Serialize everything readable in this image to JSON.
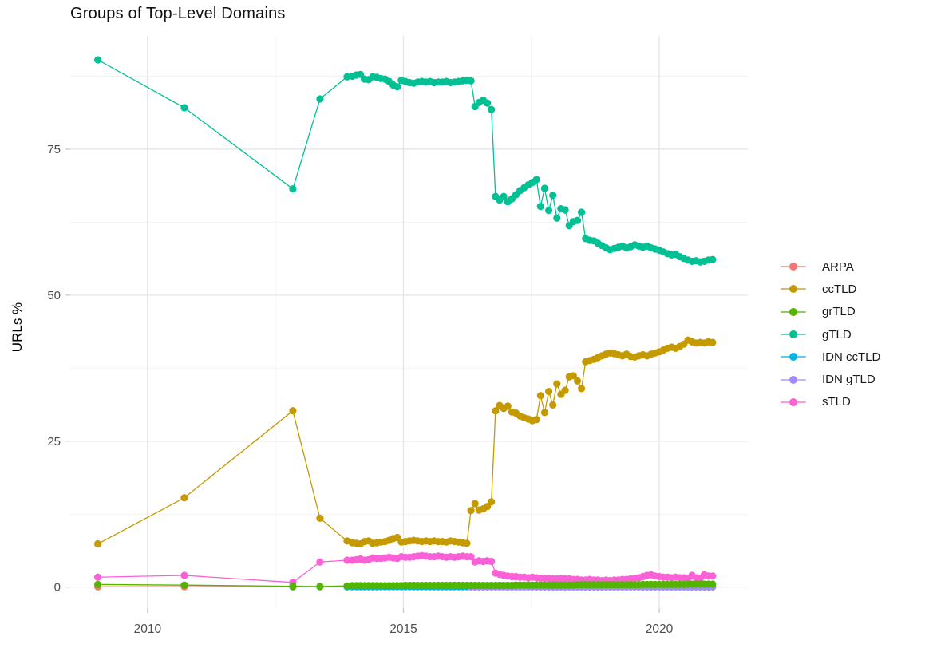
{
  "chart_data": {
    "type": "line",
    "title": "Groups of Top-Level Domains",
    "xlabel": "",
    "ylabel": "URLs %",
    "grid": true,
    "legend_position": "right",
    "xlim": [
      2008.49,
      2021.73
    ],
    "ylim": [
      -3.6,
      94.4
    ],
    "x_ticks": [
      2010,
      2015,
      2020
    ],
    "x_tick_labels": [
      "2010",
      "2015",
      "2020"
    ],
    "y_ticks": [
      0,
      25,
      50,
      75
    ],
    "y_tick_labels": [
      "0",
      "25",
      "50",
      "75"
    ],
    "x_minor": [
      2012.5,
      2017.5
    ],
    "y_minor": [
      12.5,
      37.5,
      62.5,
      87.5
    ],
    "colors": {
      "major_grid": "#e5e5e5",
      "minor_grid": "#f2f2f2",
      "tick_mark": "#c6c6c6",
      "tick_label": "#4d4d4d",
      "background": "#ffffff"
    },
    "draw_order": [
      "ARPA",
      "ccTLD",
      "gTLD",
      "IDN ccTLD",
      "IDN gTLD",
      "sTLD",
      "grTLD"
    ],
    "x": [
      2014.0,
      2014.08,
      2014.16,
      2014.24,
      2014.32,
      2014.4,
      2014.48,
      2014.56,
      2014.64,
      2014.72,
      2014.8,
      2014.88,
      2014.96,
      2015.04,
      2015.12,
      2015.2,
      2015.28,
      2015.36,
      2015.44,
      2015.52,
      2015.6,
      2015.68,
      2015.76,
      2015.84,
      2015.92,
      2016.0,
      2016.08,
      2016.16,
      2016.24,
      2016.32,
      2016.4,
      2016.48,
      2016.56,
      2016.64,
      2016.72,
      2016.8,
      2016.88,
      2016.96,
      2017.04,
      2017.12,
      2017.2,
      2017.28,
      2017.36,
      2017.44,
      2017.52,
      2017.6,
      2017.68,
      2017.76,
      2017.84,
      2017.92,
      2018.0,
      2018.08,
      2018.16,
      2018.24,
      2018.32,
      2018.4,
      2018.48,
      2018.56,
      2018.64,
      2018.72,
      2018.8,
      2018.88,
      2018.96,
      2019.04,
      2019.12,
      2019.2,
      2019.28,
      2019.36,
      2019.44,
      2019.52,
      2019.6,
      2019.68,
      2019.76,
      2019.84,
      2019.92,
      2020.0,
      2020.08,
      2020.16,
      2020.24,
      2020.32,
      2020.4,
      2020.48,
      2020.56,
      2020.64,
      2020.72,
      2020.8,
      2020.88,
      2020.96,
      2021.04
    ],
    "series": [
      {
        "name": "ARPA",
        "color": "#F8766D",
        "prefix": [
          [
            2009.03,
            0.05
          ],
          [
            2010.72,
            0.07
          ],
          [
            2012.84,
            0.03
          ]
        ],
        "values": []
      },
      {
        "name": "ccTLD",
        "color": "#C49A00",
        "prefix": [
          [
            2009.03,
            7.4
          ],
          [
            2010.72,
            15.3
          ],
          [
            2012.84,
            30.2
          ],
          [
            2013.37,
            11.8
          ],
          [
            2013.9,
            7.9
          ]
        ],
        "values": [
          7.6,
          7.5,
          7.4,
          7.8,
          7.9,
          7.5,
          7.6,
          7.7,
          7.8,
          8.0,
          8.3,
          8.5,
          7.7,
          7.8,
          7.9,
          8.0,
          7.9,
          7.8,
          7.9,
          7.8,
          7.9,
          7.8,
          7.8,
          7.7,
          7.9,
          7.8,
          7.7,
          7.6,
          7.5,
          13.1,
          14.3,
          13.2,
          13.4,
          13.8,
          14.6,
          30.2,
          31.1,
          30.6,
          31.0,
          30.0,
          29.8,
          29.3,
          29.0,
          28.8,
          28.5,
          28.7,
          32.8,
          29.9,
          33.5,
          31.2,
          34.8,
          33.0,
          33.7,
          36.0,
          36.2,
          35.3,
          34.0,
          38.6,
          38.8,
          39.0,
          39.3,
          39.6,
          39.9,
          40.1,
          40.0,
          39.8,
          39.6,
          39.9,
          39.5,
          39.4,
          39.6,
          39.8,
          39.6,
          39.9,
          40.1,
          40.3,
          40.6,
          40.9,
          41.1,
          40.9,
          41.2,
          41.6,
          42.3,
          42.0,
          41.8,
          41.9,
          41.8,
          42.0,
          41.9
        ]
      },
      {
        "name": "grTLD",
        "color": "#53B400",
        "prefix": [
          [
            2009.03,
            0.45
          ],
          [
            2010.72,
            0.33
          ],
          [
            2012.84,
            0.15
          ],
          [
            2013.37,
            0.1
          ],
          [
            2013.9,
            0.2
          ]
        ],
        "values": [
          0.25,
          0.25,
          0.25,
          0.25,
          0.25,
          0.25,
          0.25,
          0.25,
          0.25,
          0.25,
          0.25,
          0.25,
          0.25,
          0.3,
          0.3,
          0.3,
          0.3,
          0.3,
          0.3,
          0.3,
          0.3,
          0.3,
          0.3,
          0.3,
          0.3,
          0.3,
          0.3,
          0.3,
          0.3,
          0.3,
          0.3,
          0.3,
          0.3,
          0.3,
          0.3,
          0.3,
          0.3,
          0.3,
          0.3,
          0.3,
          0.35,
          0.35,
          0.35,
          0.35,
          0.35,
          0.35,
          0.35,
          0.35,
          0.35,
          0.35,
          0.35,
          0.35,
          0.35,
          0.35,
          0.35,
          0.4,
          0.4,
          0.4,
          0.4,
          0.4,
          0.4,
          0.4,
          0.4,
          0.4,
          0.4,
          0.4,
          0.4,
          0.4,
          0.4,
          0.4,
          0.4,
          0.45,
          0.45,
          0.45,
          0.45,
          0.45,
          0.45,
          0.45,
          0.45,
          0.45,
          0.45,
          0.45,
          0.5,
          0.5,
          0.5,
          0.5,
          0.5,
          0.5,
          0.5
        ]
      },
      {
        "name": "gTLD",
        "color": "#00C094",
        "prefix": [
          [
            2009.03,
            90.3
          ],
          [
            2010.72,
            82.1
          ],
          [
            2012.84,
            68.2
          ],
          [
            2013.37,
            83.6
          ],
          [
            2013.9,
            87.4
          ]
        ],
        "values": [
          87.5,
          87.7,
          87.8,
          87.0,
          86.9,
          87.4,
          87.3,
          87.1,
          87.0,
          86.6,
          86.0,
          85.7,
          86.8,
          86.6,
          86.4,
          86.3,
          86.5,
          86.6,
          86.5,
          86.6,
          86.4,
          86.5,
          86.5,
          86.6,
          86.4,
          86.5,
          86.6,
          86.7,
          86.8,
          86.7,
          82.3,
          83.0,
          83.4,
          82.9,
          81.8,
          66.9,
          66.3,
          66.9,
          66.0,
          66.5,
          67.2,
          67.9,
          68.4,
          68.9,
          69.3,
          69.8,
          65.2,
          68.3,
          64.5,
          67.1,
          63.2,
          64.8,
          64.6,
          61.9,
          62.6,
          62.8,
          64.2,
          59.7,
          59.4,
          59.3,
          58.9,
          58.5,
          58.1,
          57.8,
          58.0,
          58.2,
          58.4,
          58.1,
          58.3,
          58.6,
          58.4,
          58.2,
          58.4,
          58.1,
          57.9,
          57.7,
          57.4,
          57.1,
          56.9,
          57.0,
          56.6,
          56.3,
          56.0,
          55.8,
          55.9,
          55.7,
          55.8,
          56.0,
          56.1
        ]
      },
      {
        "name": "IDN ccTLD",
        "color": "#00B6EB",
        "prefix": [
          [
            2012.84,
            0.1
          ],
          [
            2013.37,
            0.05
          ],
          [
            2013.9,
            0.05
          ]
        ],
        "values": [
          0.08,
          0.08,
          0.08,
          0.08,
          0.08,
          0.08,
          0.08,
          0.08,
          0.08,
          0.08,
          0.08,
          0.08,
          0.08,
          0.08,
          0.08,
          0.08,
          0.08,
          0.08,
          0.08,
          0.08,
          0.08,
          0.08,
          0.08,
          0.08,
          0.08,
          0.08,
          0.08,
          0.08,
          0.08,
          0.08,
          0.08,
          0.08,
          0.08,
          0.08,
          0.08,
          0.08,
          0.08,
          0.08,
          0.08,
          0.08,
          0.08,
          0.08,
          0.08,
          0.08,
          0.08,
          0.08,
          0.08,
          0.08,
          0.08,
          0.08,
          0.08,
          0.08,
          0.08,
          0.08,
          0.08,
          0.08,
          0.08,
          0.08,
          0.08,
          0.08,
          0.08,
          0.08,
          0.08,
          0.08,
          0.08,
          0.08,
          0.08,
          0.08,
          0.08,
          0.08,
          0.08,
          0.08,
          0.08,
          0.08,
          0.08,
          0.08,
          0.08,
          0.08,
          0.08,
          0.08,
          0.08,
          0.08,
          0.08,
          0.08,
          0.08,
          0.08,
          0.08,
          0.08,
          0.08
        ]
      },
      {
        "name": "IDN gTLD",
        "color": "#A58AFF",
        "prefix": [],
        "values": [
          null,
          null,
          null,
          null,
          null,
          null,
          null,
          null,
          null,
          null,
          null,
          null,
          null,
          null,
          null,
          null,
          null,
          null,
          null,
          null,
          null,
          null,
          null,
          null,
          null,
          null,
          null,
          null,
          null,
          0.03,
          0.03,
          0.03,
          0.03,
          0.03,
          0.03,
          0.03,
          0.03,
          0.03,
          0.03,
          0.03,
          0.03,
          0.03,
          0.03,
          0.03,
          0.03,
          0.03,
          0.03,
          0.03,
          0.03,
          0.03,
          0.03,
          0.03,
          0.03,
          0.03,
          0.03,
          0.03,
          0.03,
          0.03,
          0.03,
          0.03,
          0.03,
          0.03,
          0.03,
          0.03,
          0.03,
          0.03,
          0.03,
          0.03,
          0.03,
          0.03,
          0.03,
          0.03,
          0.03,
          0.03,
          0.03,
          0.03,
          0.03,
          0.03,
          0.03,
          0.03,
          0.03,
          0.03,
          0.03,
          0.03,
          0.03,
          0.03,
          0.03,
          0.03,
          0.03
        ]
      },
      {
        "name": "sTLD",
        "color": "#FB61D7",
        "prefix": [
          [
            2009.03,
            1.7
          ],
          [
            2010.72,
            2.0
          ],
          [
            2012.84,
            0.8
          ],
          [
            2013.37,
            4.3
          ],
          [
            2013.9,
            4.6
          ]
        ],
        "values": [
          4.6,
          4.7,
          4.8,
          4.6,
          4.7,
          5.0,
          4.9,
          4.9,
          5.0,
          5.1,
          5.0,
          4.9,
          5.2,
          5.1,
          5.1,
          5.2,
          5.3,
          5.4,
          5.3,
          5.2,
          5.2,
          5.3,
          5.2,
          5.1,
          5.2,
          5.1,
          5.2,
          5.3,
          5.2,
          5.2,
          4.3,
          4.5,
          4.4,
          4.5,
          4.4,
          2.4,
          2.2,
          2.0,
          1.9,
          1.8,
          1.8,
          1.7,
          1.7,
          1.6,
          1.7,
          1.6,
          1.5,
          1.5,
          1.5,
          1.4,
          1.4,
          1.5,
          1.4,
          1.4,
          1.3,
          1.3,
          1.2,
          1.2,
          1.3,
          1.2,
          1.2,
          1.1,
          1.2,
          1.1,
          1.2,
          1.2,
          1.3,
          1.3,
          1.4,
          1.5,
          1.6,
          1.8,
          2.0,
          2.1,
          1.9,
          1.8,
          1.7,
          1.7,
          1.6,
          1.7,
          1.6,
          1.6,
          1.5,
          2.0,
          1.6,
          1.5,
          2.1,
          1.9,
          1.9
        ]
      }
    ]
  }
}
